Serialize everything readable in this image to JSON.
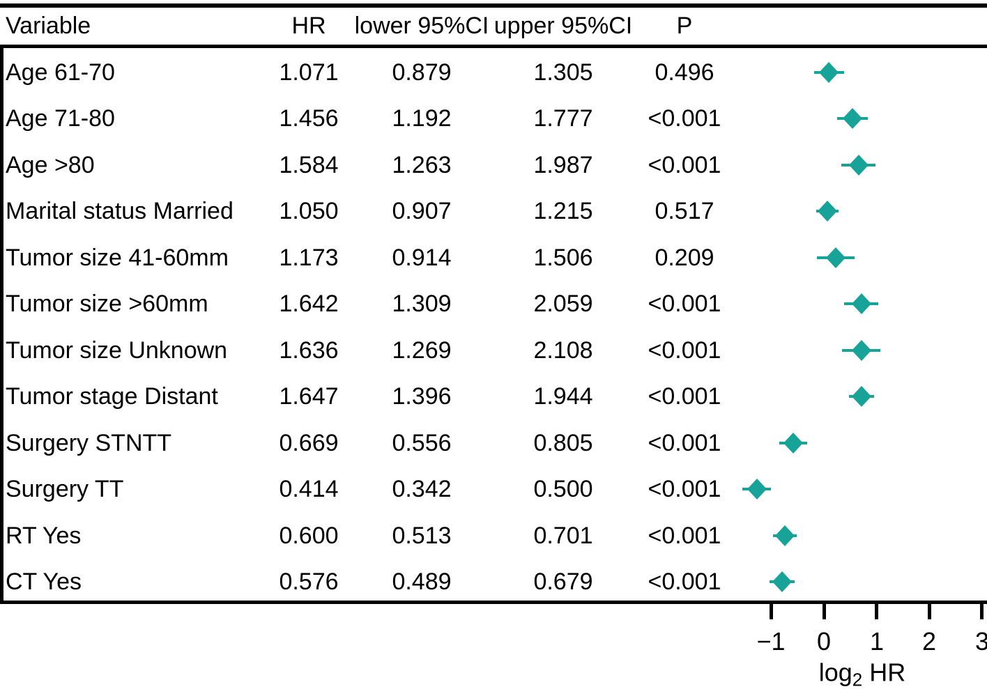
{
  "colors": {
    "marker": "#17a398",
    "line": "#000000",
    "text": "#000000",
    "background": "#ffffff"
  },
  "chart_data": {
    "type": "scatter",
    "subtype": "forest-plot",
    "columns": [
      "Variable",
      "HR",
      "lower 95%CI",
      "upper 95%CI",
      "P"
    ],
    "rows": [
      {
        "variable": "Age 61-70",
        "hr": "1.071",
        "lower": "0.879",
        "upper": "1.305",
        "p": "0.496"
      },
      {
        "variable": "Age 71-80",
        "hr": "1.456",
        "lower": "1.192",
        "upper": "1.777",
        "p": "<0.001"
      },
      {
        "variable": "Age >80",
        "hr": "1.584",
        "lower": "1.263",
        "upper": "1.987",
        "p": "<0.001"
      },
      {
        "variable": "Marital status Married",
        "hr": "1.050",
        "lower": "0.907",
        "upper": "1.215",
        "p": "0.517"
      },
      {
        "variable": "Tumor size 41-60mm",
        "hr": "1.173",
        "lower": "0.914",
        "upper": "1.506",
        "p": "0.209"
      },
      {
        "variable": "Tumor size >60mm",
        "hr": "1.642",
        "lower": "1.309",
        "upper": "2.059",
        "p": "<0.001"
      },
      {
        "variable": "Tumor size Unknown",
        "hr": "1.636",
        "lower": "1.269",
        "upper": "2.108",
        "p": "<0.001"
      },
      {
        "variable": "Tumor stage Distant",
        "hr": "1.647",
        "lower": "1.396",
        "upper": "1.944",
        "p": "<0.001"
      },
      {
        "variable": "Surgery STNTT",
        "hr": "0.669",
        "lower": "0.556",
        "upper": "0.805",
        "p": "<0.001"
      },
      {
        "variable": "Surgery TT",
        "hr": "0.414",
        "lower": "0.342",
        "upper": "0.500",
        "p": "<0.001"
      },
      {
        "variable": "RT Yes",
        "hr": "0.600",
        "lower": "0.513",
        "upper": "0.701",
        "p": "<0.001"
      },
      {
        "variable": "CT Yes",
        "hr": "0.576",
        "lower": "0.489",
        "upper": "0.679",
        "p": "<0.001"
      }
    ],
    "xaxis": {
      "scale": "log2",
      "range": [
        -1,
        3
      ],
      "tick_values": [
        -1,
        0,
        1,
        2,
        3
      ],
      "tick_labels": [
        "−1",
        "0",
        "1",
        "2",
        "3"
      ],
      "label_base": "log",
      "label_sub": "2",
      "label_rest": " HR"
    },
    "grid": false,
    "legend": false,
    "marker_shape": "diamond"
  }
}
